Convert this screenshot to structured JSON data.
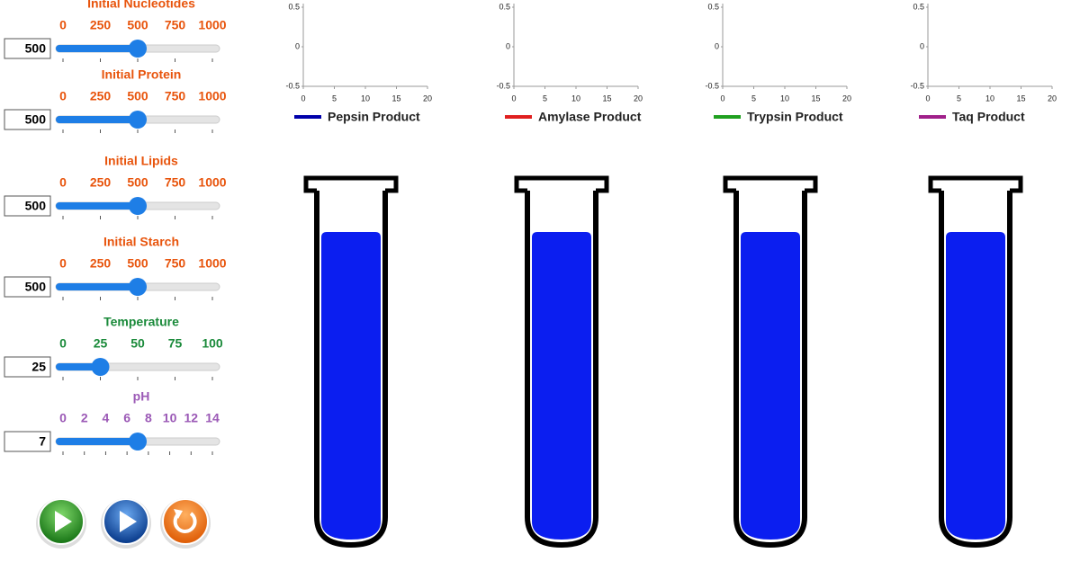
{
  "sliders": [
    {
      "label": "Initial Nucleotides",
      "value": 500,
      "min": 0,
      "max": 1000,
      "ticks": [
        0,
        250,
        500,
        750,
        1000
      ],
      "color": "#e8540c"
    },
    {
      "label": "Initial Protein",
      "value": 500,
      "min": 0,
      "max": 1000,
      "ticks": [
        0,
        250,
        500,
        750,
        1000
      ],
      "color": "#e8540c"
    },
    {
      "label": "Initial Lipids",
      "value": 500,
      "min": 0,
      "max": 1000,
      "ticks": [
        0,
        250,
        500,
        750,
        1000
      ],
      "color": "#e8540c"
    },
    {
      "label": "Initial Starch",
      "value": 500,
      "min": 0,
      "max": 1000,
      "ticks": [
        0,
        250,
        500,
        750,
        1000
      ],
      "color": "#e8540c"
    },
    {
      "label": "Temperature",
      "value": 25,
      "min": 0,
      "max": 100,
      "ticks": [
        0,
        25,
        50,
        75,
        100
      ],
      "color": "#1a8a3a"
    },
    {
      "label": "pH",
      "value": 7,
      "min": 0,
      "max": 14,
      "ticks": [
        0,
        2,
        4,
        6,
        8,
        10,
        12,
        14
      ],
      "color": "#9b59b6"
    }
  ],
  "charts": [
    {
      "type": "line",
      "xlim": [
        0,
        20
      ],
      "xticks": [
        0,
        5,
        10,
        15,
        20
      ],
      "ylim": [
        -0.5,
        0.5
      ],
      "yticks": [
        -0.5,
        0,
        0.5
      ],
      "series": [
        {
          "name": "Pepsin Product",
          "color": "#0000aa",
          "values": []
        }
      ]
    },
    {
      "type": "line",
      "xlim": [
        0,
        20
      ],
      "xticks": [
        0,
        5,
        10,
        15,
        20
      ],
      "ylim": [
        -0.5,
        0.5
      ],
      "yticks": [
        -0.5,
        0,
        0.5
      ],
      "series": [
        {
          "name": "Amylase Product",
          "color": "#e02020",
          "values": []
        }
      ]
    },
    {
      "type": "line",
      "xlim": [
        0,
        20
      ],
      "xticks": [
        0,
        5,
        10,
        15,
        20
      ],
      "ylim": [
        -0.5,
        0.5
      ],
      "yticks": [
        -0.5,
        0,
        0.5
      ],
      "series": [
        {
          "name": "Trypsin Product",
          "color": "#20a020",
          "values": []
        }
      ]
    },
    {
      "type": "line",
      "xlim": [
        0,
        20
      ],
      "xticks": [
        0,
        5,
        10,
        15,
        20
      ],
      "ylim": [
        -0.5,
        0.5
      ],
      "yticks": [
        -0.5,
        0,
        0.5
      ],
      "series": [
        {
          "name": "Taq Product",
          "color": "#a0208a",
          "values": []
        }
      ]
    }
  ]
}
